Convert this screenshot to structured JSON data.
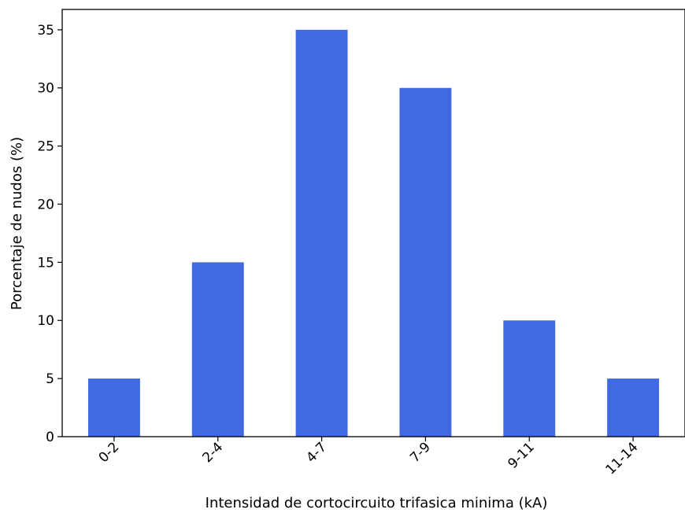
{
  "chart_data": {
    "type": "bar",
    "title": "",
    "xlabel": "Intensidad de cortocircuito trifasica minima (kA)",
    "ylabel": "Porcentaje de nudos (%)",
    "categories": [
      "0-2",
      "2-4",
      "4-7",
      "7-9",
      "9-11",
      "11-14"
    ],
    "values": [
      5,
      15,
      35,
      30,
      10,
      5
    ],
    "ylim": [
      0,
      36.75
    ],
    "yticks": [
      0,
      5,
      10,
      15,
      20,
      25,
      30,
      35
    ],
    "x_tick_rotation_deg": 45,
    "grid": false,
    "legend": "none",
    "bar_color": "#4169e1"
  }
}
